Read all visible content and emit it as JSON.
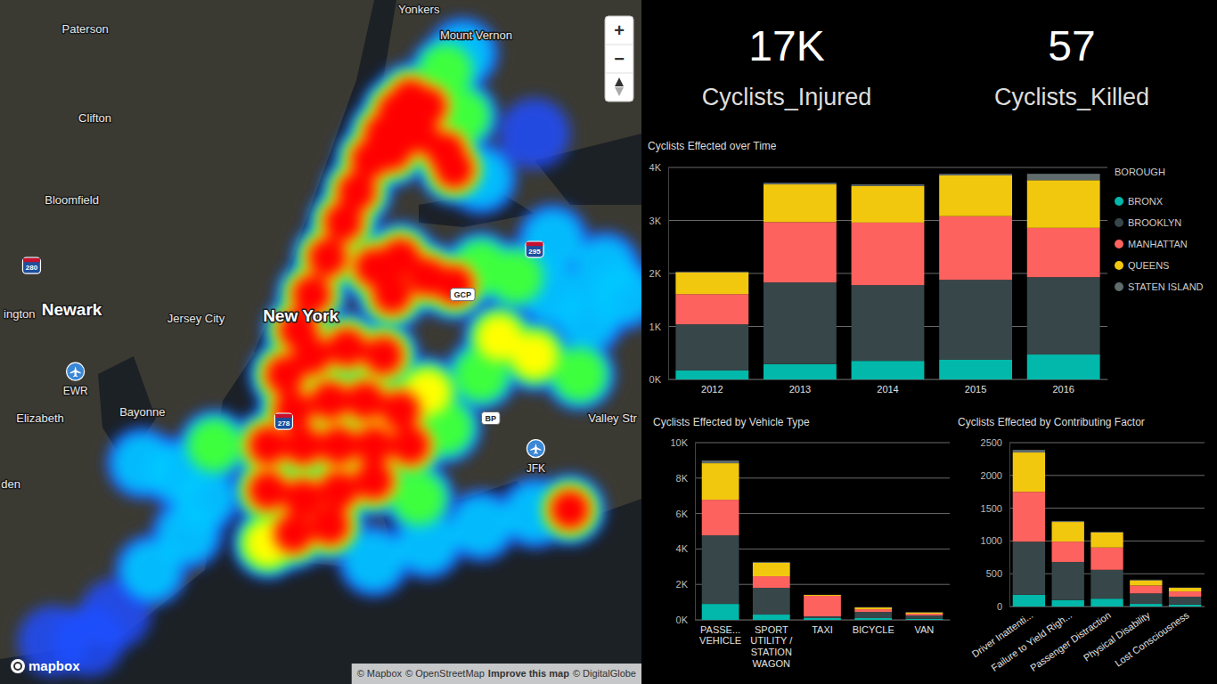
{
  "map": {
    "controls": [
      "+",
      "−"
    ],
    "logo": "mapbox",
    "attribution": [
      "© Mapbox",
      "© OpenStreetMap",
      "Improve this map",
      "© DigitalGlobe"
    ],
    "labels": [
      {
        "text": "Yonkers",
        "kind": "city",
        "lon": -73.876,
        "lat": 40.921
      },
      {
        "text": "Mount Vernon",
        "kind": "city",
        "lon": -73.829,
        "lat": 40.905
      },
      {
        "text": "Paterson",
        "kind": "city",
        "lon": -74.15,
        "lat": 40.909
      },
      {
        "text": "Clifton",
        "kind": "city",
        "lon": -74.142,
        "lat": 40.854
      },
      {
        "text": "Bloomfield",
        "kind": "city",
        "lon": -74.161,
        "lat": 40.803
      },
      {
        "text": "ington",
        "kind": "city",
        "lon": -74.204,
        "lat": 40.732
      },
      {
        "text": "Newark",
        "kind": "major",
        "lon": -74.161,
        "lat": 40.735
      },
      {
        "text": "Jersey City",
        "kind": "city",
        "lon": -74.059,
        "lat": 40.729
      },
      {
        "text": "New York",
        "kind": "major",
        "lon": -73.973,
        "lat": 40.731
      },
      {
        "text": "Elizabeth",
        "kind": "city",
        "lon": -74.187,
        "lat": 40.667
      },
      {
        "text": "Bayonne",
        "kind": "city",
        "lon": -74.103,
        "lat": 40.671
      },
      {
        "text": "Valley Str",
        "kind": "city",
        "lon": -73.717,
        "lat": 40.667
      },
      {
        "text": "den",
        "kind": "city",
        "lon": -74.211,
        "lat": 40.626
      },
      {
        "text": "GCP",
        "kind": "road",
        "lon": -73.84,
        "lat": 40.744
      },
      {
        "text": "BP",
        "kind": "road",
        "lon": -73.817,
        "lat": 40.667
      },
      {
        "text": "280",
        "kind": "interstate",
        "lon": -74.194,
        "lat": 40.762
      },
      {
        "text": "295",
        "kind": "interstate",
        "lon": -73.781,
        "lat": 40.772
      },
      {
        "text": "278",
        "kind": "interstate",
        "lon": -73.987,
        "lat": 40.665
      },
      {
        "text": "EWR",
        "kind": "airport",
        "lon": -74.158,
        "lat": 40.696
      },
      {
        "text": "JFK",
        "kind": "airport",
        "lon": -73.78,
        "lat": 40.648
      }
    ],
    "heat": [
      {
        "lon": -73.975,
        "lat": 40.722,
        "intensity": 1
      },
      {
        "lon": -73.964,
        "lat": 40.744,
        "intensity": 1
      },
      {
        "lon": -73.951,
        "lat": 40.767,
        "intensity": 1
      },
      {
        "lon": -73.938,
        "lat": 40.789,
        "intensity": 1
      },
      {
        "lon": -73.927,
        "lat": 40.808,
        "intensity": 1
      },
      {
        "lon": -73.916,
        "lat": 40.828,
        "intensity": 1
      },
      {
        "lon": -73.905,
        "lat": 40.844,
        "intensity": 1
      },
      {
        "lon": -73.894,
        "lat": 40.858,
        "intensity": 1
      },
      {
        "lon": -73.883,
        "lat": 40.866,
        "intensity": 1
      },
      {
        "lon": -73.898,
        "lat": 40.833,
        "intensity": 1
      },
      {
        "lon": -73.876,
        "lat": 40.844,
        "intensity": 1
      },
      {
        "lon": -73.854,
        "lat": 40.833,
        "intensity": 1
      },
      {
        "lon": -73.869,
        "lat": 40.861,
        "intensity": 1
      },
      {
        "lon": -73.847,
        "lat": 40.822,
        "intensity": 0.8
      },
      {
        "lon": -73.84,
        "lat": 40.855,
        "intensity": 0.6
      },
      {
        "lon": -73.854,
        "lat": 40.883,
        "intensity": 0.5
      },
      {
        "lon": -73.825,
        "lat": 40.816,
        "intensity": 0.4
      },
      {
        "lon": -73.913,
        "lat": 40.761,
        "intensity": 1
      },
      {
        "lon": -73.891,
        "lat": 40.767,
        "intensity": 1
      },
      {
        "lon": -73.869,
        "lat": 40.755,
        "intensity": 1
      },
      {
        "lon": -73.847,
        "lat": 40.75,
        "intensity": 0.9
      },
      {
        "lon": -73.898,
        "lat": 40.744,
        "intensity": 1
      },
      {
        "lon": -73.825,
        "lat": 40.761,
        "intensity": 0.6
      },
      {
        "lon": -73.796,
        "lat": 40.755,
        "intensity": 0.5
      },
      {
        "lon": -73.81,
        "lat": 40.717,
        "intensity": 0.7
      },
      {
        "lon": -73.781,
        "lat": 40.706,
        "intensity": 0.7
      },
      {
        "lon": -73.825,
        "lat": 40.694,
        "intensity": 0.6
      },
      {
        "lon": -73.766,
        "lat": 40.744,
        "intensity": 0.4
      },
      {
        "lon": -73.737,
        "lat": 40.728,
        "intensity": 0.4
      },
      {
        "lon": -73.744,
        "lat": 40.694,
        "intensity": 0.5
      },
      {
        "lon": -73.723,
        "lat": 40.761,
        "intensity": 0.3
      },
      {
        "lon": -73.766,
        "lat": 40.778,
        "intensity": 0.35
      },
      {
        "lon": -73.708,
        "lat": 40.744,
        "intensity": 0.3
      },
      {
        "lon": -73.986,
        "lat": 40.694,
        "intensity": 1
      },
      {
        "lon": -73.964,
        "lat": 40.706,
        "intensity": 1
      },
      {
        "lon": -73.935,
        "lat": 40.711,
        "intensity": 1
      },
      {
        "lon": -73.905,
        "lat": 40.706,
        "intensity": 1
      },
      {
        "lon": -73.979,
        "lat": 40.672,
        "intensity": 1
      },
      {
        "lon": -73.949,
        "lat": 40.678,
        "intensity": 1
      },
      {
        "lon": -73.92,
        "lat": 40.678,
        "intensity": 1
      },
      {
        "lon": -73.891,
        "lat": 40.672,
        "intensity": 1
      },
      {
        "lon": -74.0,
        "lat": 40.65,
        "intensity": 1
      },
      {
        "lon": -73.971,
        "lat": 40.65,
        "intensity": 1
      },
      {
        "lon": -73.942,
        "lat": 40.65,
        "intensity": 1
      },
      {
        "lon": -73.913,
        "lat": 40.65,
        "intensity": 1
      },
      {
        "lon": -73.883,
        "lat": 40.65,
        "intensity": 1
      },
      {
        "lon": -74.0,
        "lat": 40.622,
        "intensity": 1
      },
      {
        "lon": -73.971,
        "lat": 40.617,
        "intensity": 1
      },
      {
        "lon": -73.942,
        "lat": 40.622,
        "intensity": 1
      },
      {
        "lon": -73.913,
        "lat": 40.628,
        "intensity": 1
      },
      {
        "lon": -73.979,
        "lat": 40.595,
        "intensity": 1
      },
      {
        "lon": -73.949,
        "lat": 40.6,
        "intensity": 1
      },
      {
        "lon": -73.869,
        "lat": 40.683,
        "intensity": 0.7
      },
      {
        "lon": -73.854,
        "lat": 40.661,
        "intensity": 0.6
      },
      {
        "lon": -73.876,
        "lat": 40.617,
        "intensity": 0.6
      },
      {
        "lon": -74.0,
        "lat": 40.589,
        "intensity": 0.7
      },
      {
        "lon": -74.103,
        "lat": 40.639,
        "intensity": 0.4
      },
      {
        "lon": -74.074,
        "lat": 40.633,
        "intensity": 0.4
      },
      {
        "lon": -74.052,
        "lat": 40.617,
        "intensity": 0.35
      },
      {
        "lon": -74.066,
        "lat": 40.595,
        "intensity": 0.3
      },
      {
        "lon": -74.096,
        "lat": 40.572,
        "intensity": 0.3
      },
      {
        "lon": -74.125,
        "lat": 40.545,
        "intensity": 0.25
      },
      {
        "lon": -74.147,
        "lat": 40.528,
        "intensity": 0.2
      },
      {
        "lon": -74.044,
        "lat": 40.65,
        "intensity": 0.5
      },
      {
        "lon": -74.176,
        "lat": 40.528,
        "intensity": 0.2
      },
      {
        "lon": -73.913,
        "lat": 40.578,
        "intensity": 0.3
      },
      {
        "lon": -73.869,
        "lat": 40.589,
        "intensity": 0.3
      },
      {
        "lon": -73.825,
        "lat": 40.6,
        "intensity": 0.35
      },
      {
        "lon": -73.781,
        "lat": 40.608,
        "intensity": 0.35
      },
      {
        "lon": -73.752,
        "lat": 40.61,
        "intensity": 0.8
      },
      {
        "lon": -73.84,
        "lat": 40.894,
        "intensity": 0.35
      },
      {
        "lon": -73.781,
        "lat": 40.844,
        "intensity": 0.25
      }
    ]
  },
  "kpis": [
    {
      "value": 17000,
      "label": "17K",
      "title": "Cyclists_Injured"
    },
    {
      "value": 57,
      "title": "Cyclists_Killed"
    }
  ],
  "chart_data": [
    {
      "type": "bar",
      "stacked": true,
      "title": "Cyclists Effected over Time",
      "categories": [
        "2012",
        "2013",
        "2014",
        "2015",
        "2016"
      ],
      "series": [
        {
          "name": "BRONX",
          "color": "#01b8aa",
          "values": [
            170,
            290,
            350,
            370,
            470
          ]
        },
        {
          "name": "BROOKLYN",
          "color": "#374649",
          "values": [
            870,
            1540,
            1430,
            1510,
            1460
          ]
        },
        {
          "name": "MANHATTAN",
          "color": "#fd625e",
          "values": [
            570,
            1140,
            1180,
            1200,
            930
          ]
        },
        {
          "name": "QUEENS",
          "color": "#f2c80f",
          "values": [
            410,
            710,
            690,
            770,
            900
          ]
        },
        {
          "name": "STATEN ISLAND",
          "color": "#5f6b6d",
          "values": [
            15,
            30,
            30,
            30,
            120
          ]
        }
      ],
      "ylim": [
        0,
        4000
      ],
      "yticks": [
        {
          "value": 0,
          "label": "0K"
        },
        {
          "value": 1000,
          "label": "1K"
        },
        {
          "value": 2000,
          "label": "2K"
        },
        {
          "value": 3000,
          "label": "3K"
        },
        {
          "value": 4000,
          "label": "4K"
        }
      ],
      "grid": true,
      "legend": "right",
      "legend_title": "BOROUGH"
    },
    {
      "type": "bar",
      "stacked": true,
      "title": "Cyclists Effected by Vehicle Type",
      "categories": [
        "PASSE...\nVEHICLE",
        "SPORT\nUTILITY /\nSTATION\nWAGON",
        "TAXI",
        "BICYCLE",
        "VAN"
      ],
      "series": [
        {
          "name": "BRONX",
          "color": "#01b8aa",
          "values": [
            900,
            300,
            100,
            100,
            60
          ]
        },
        {
          "name": "BROOKLYN",
          "color": "#374649",
          "values": [
            3870,
            1510,
            100,
            350,
            190
          ]
        },
        {
          "name": "MANHATTAN",
          "color": "#fd625e",
          "values": [
            2010,
            650,
            1160,
            150,
            100
          ]
        },
        {
          "name": "QUEENS",
          "color": "#f2c80f",
          "values": [
            2060,
            760,
            50,
            100,
            70
          ]
        },
        {
          "name": "STATEN ISLAND",
          "color": "#5f6b6d",
          "values": [
            150,
            50,
            5,
            20,
            20
          ]
        }
      ],
      "ylim": [
        0,
        10000
      ],
      "yticks": [
        {
          "value": 0,
          "label": "0K"
        },
        {
          "value": 2000,
          "label": "2K"
        },
        {
          "value": 4000,
          "label": "4K"
        },
        {
          "value": 6000,
          "label": "6K"
        },
        {
          "value": 8000,
          "label": "8K"
        },
        {
          "value": 10000,
          "label": "10K"
        }
      ],
      "grid": true
    },
    {
      "type": "bar",
      "stacked": true,
      "title": "Cyclists Effected by Contributing Factor",
      "categories": [
        "Driver Inattenti...",
        "Failure to Yield Righ...",
        "Passenger Distraction",
        "Physical Disability",
        "Lost Consciousness"
      ],
      "series": [
        {
          "name": "BRONX",
          "color": "#01b8aa",
          "values": [
            180,
            100,
            120,
            40,
            30
          ]
        },
        {
          "name": "BROOKLYN",
          "color": "#374649",
          "values": [
            810,
            580,
            440,
            160,
            120
          ]
        },
        {
          "name": "MANHATTAN",
          "color": "#fd625e",
          "values": [
            760,
            310,
            340,
            120,
            80
          ]
        },
        {
          "name": "QUEENS",
          "color": "#f2c80f",
          "values": [
            600,
            300,
            230,
            80,
            55
          ]
        },
        {
          "name": "STATEN ISLAND",
          "color": "#5f6b6d",
          "values": [
            40,
            15,
            10,
            10,
            5
          ]
        }
      ],
      "ylim": [
        0,
        2500
      ],
      "yticks": [
        0,
        500,
        1000,
        1500,
        2000,
        2500
      ],
      "grid": true
    }
  ]
}
